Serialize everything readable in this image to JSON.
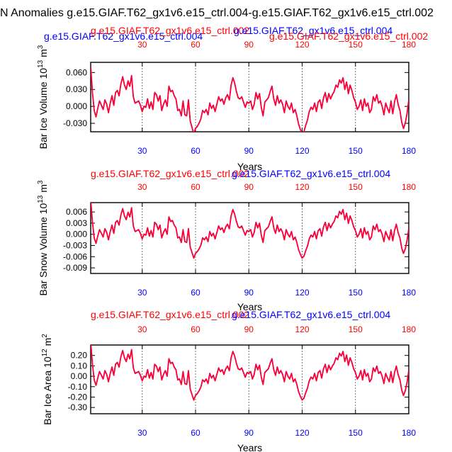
{
  "figure": {
    "title": "N Anomalies g.e15.GIAF.T62_gx1v6.e15_ctrl.004-g.e15.GIAF.T62_gx1v6.e15_ctrl.002",
    "xlabel": "Years"
  },
  "colors": {
    "case_a": "#0000ff",
    "case_b": "#ff0000",
    "line_blue": "#0000ff",
    "line_red": "#ff0033",
    "axis": "#000000",
    "guide": "#555555"
  },
  "chart_data": [
    {
      "type": "line",
      "ylabel": "Bar Ice Volume 10",
      "ylabel_exp": "13",
      "ylabel_unit": " m",
      "ylabel_unit_exp": "3",
      "legend_left": "g.e15.GIAF.T62_gx1v6.e15_ctrl.004",
      "legend_left_over": "g.e15.GIAF.T62_gx1v6.e15_ctrl.002",
      "legend_mid_over": "g.e15.GIAF.T62_gx1v6.e15_ctrl.004",
      "legend_right": "g.e15.GIAF.T62_gx1v6.e15_ctrl.002",
      "xlim": [
        1,
        180
      ],
      "ylim": [
        -0.045,
        0.078
      ],
      "yticks": [
        0.06,
        0.03,
        0.0,
        -0.03
      ],
      "ytick_labels": [
        "0.060",
        "0.030",
        "0.000",
        "-0.030"
      ],
      "xticks": [
        30,
        60,
        90,
        120,
        150,
        180
      ],
      "xtick_labels": [
        "30",
        "60",
        "90",
        "120",
        "150",
        "180"
      ],
      "guides": [
        30,
        60,
        90,
        120,
        150
      ],
      "scale": 0.0187,
      "series": [
        {
          "name": "g.e15.GIAF.T62_gx1v6.e15_ctrl.004",
          "color": "#0000ff"
        },
        {
          "name": "g.e15.GIAF.T62_gx1v6.e15_ctrl.002",
          "color": "#ff0033"
        }
      ]
    },
    {
      "type": "line",
      "ylabel": "Bar Snow Volume 10",
      "ylabel_exp": "13",
      "ylabel_unit": " m",
      "ylabel_unit_exp": "3",
      "legend_left": "g.e15.GIAF.T62_gx1v6.e15_ctrl.002",
      "legend_right": "g.e15.GIAF.T62_gx1v6.e15_ctrl.004",
      "xlim": [
        1,
        180
      ],
      "ylim": [
        -0.0105,
        0.0085
      ],
      "yticks": [
        0.006,
        0.003,
        0.0,
        -0.003,
        -0.006,
        -0.009
      ],
      "ytick_labels": [
        "0.006",
        "0.003",
        "0.000",
        "-0.003",
        "-0.006",
        "-0.009"
      ],
      "xticks": [
        30,
        60,
        90,
        120,
        150,
        180
      ],
      "xtick_labels": [
        "30",
        "60",
        "90",
        "120",
        "150",
        "180"
      ],
      "guides": [
        30,
        60,
        90,
        120,
        150
      ],
      "scale": 0.00245,
      "series": [
        {
          "name": "g.e15.GIAF.T62_gx1v6.e15_ctrl.004",
          "color": "#0000ff"
        },
        {
          "name": "g.e15.GIAF.T62_gx1v6.e15_ctrl.002",
          "color": "#ff0033"
        }
      ]
    },
    {
      "type": "line",
      "ylabel": "Bar Ice Area 10",
      "ylabel_exp": "12",
      "ylabel_unit": " m",
      "ylabel_unit_exp": "2",
      "legend_left": "g.e15.GIAF.T62_gx1v6.e15_ctrl.002",
      "legend_right": "g.e15.GIAF.T62_gx1v6.e15_ctrl.004",
      "xlim": [
        1,
        180
      ],
      "ylim": [
        -0.36,
        0.3
      ],
      "yticks": [
        0.2,
        0.1,
        0.0,
        -0.1,
        -0.2,
        -0.3
      ],
      "ytick_labels": [
        "0.20",
        "0.10",
        "0.00",
        "-0.10",
        "-0.20",
        "-0.30"
      ],
      "xticks": [
        30,
        60,
        90,
        120,
        150,
        180
      ],
      "xtick_labels": [
        "30",
        "60",
        "90",
        "120",
        "150",
        "180"
      ],
      "guides": [
        30,
        60,
        90,
        120,
        150
      ],
      "scale": 0.088,
      "series": [
        {
          "name": "g.e15.GIAF.T62_gx1v6.e15_ctrl.004",
          "color": "#0000ff"
        },
        {
          "name": "g.e15.GIAF.T62_gx1v6.e15_ctrl.002",
          "color": "#ff0033"
        }
      ]
    }
  ],
  "base_pattern": [
    [
      1,
      3.8
    ],
    [
      2,
      1.3
    ],
    [
      3,
      -0.4
    ],
    [
      4,
      -1.0
    ],
    [
      5,
      -0.2
    ],
    [
      6,
      0.5
    ],
    [
      7,
      0.1
    ],
    [
      8,
      -0.3
    ],
    [
      9,
      0.6
    ],
    [
      10,
      0.2
    ],
    [
      11,
      -0.6
    ],
    [
      12,
      0.3
    ],
    [
      13,
      1.0
    ],
    [
      14,
      0.1
    ],
    [
      15,
      1.3
    ],
    [
      16,
      1.5
    ],
    [
      17,
      1.0
    ],
    [
      18,
      2.1
    ],
    [
      19,
      2.8
    ],
    [
      20,
      2.0
    ],
    [
      21,
      1.6
    ],
    [
      22,
      2.4
    ],
    [
      23,
      1.9
    ],
    [
      24,
      2.9
    ],
    [
      25,
      0.9
    ],
    [
      26,
      0.3
    ],
    [
      27,
      0.4
    ],
    [
      28,
      0.5
    ],
    [
      29,
      0.1
    ],
    [
      30,
      -0.5
    ],
    [
      31,
      0.0
    ],
    [
      32,
      -0.1
    ],
    [
      33,
      0.7
    ],
    [
      34,
      -0.2
    ],
    [
      35,
      0.4
    ],
    [
      36,
      -0.3
    ],
    [
      37,
      1.3
    ],
    [
      38,
      1.1
    ],
    [
      39,
      0.5
    ],
    [
      40,
      1.0
    ],
    [
      41,
      -0.4
    ],
    [
      42,
      0.2
    ],
    [
      43,
      0.6
    ],
    [
      44,
      0.0
    ],
    [
      45,
      1.9
    ],
    [
      46,
      1.4
    ],
    [
      47,
      1.5
    ],
    [
      48,
      1.0
    ],
    [
      49,
      0.7
    ],
    [
      50,
      -0.4
    ],
    [
      51,
      -0.3
    ],
    [
      52,
      -0.9
    ],
    [
      53,
      0.5
    ],
    [
      54,
      -0.8
    ],
    [
      55,
      -0.9
    ],
    [
      56,
      0.6
    ],
    [
      57,
      -1.4
    ],
    [
      58,
      -2.0
    ],
    [
      59,
      -2.6
    ],
    [
      60,
      -2.1
    ],
    [
      61,
      -1.9
    ],
    [
      62,
      -1.6
    ],
    [
      63,
      -1.2
    ],
    [
      64,
      -0.4
    ],
    [
      65,
      -0.6
    ],
    [
      66,
      -0.3
    ],
    [
      67,
      -0.8
    ],
    [
      68,
      0.3
    ],
    [
      69,
      -0.2
    ],
    [
      70,
      0.1
    ],
    [
      71,
      -0.5
    ],
    [
      72,
      0.2
    ],
    [
      73,
      0.9
    ],
    [
      74,
      0.5
    ],
    [
      75,
      0.7
    ],
    [
      76,
      0.2
    ],
    [
      77,
      0.8
    ],
    [
      78,
      1.1
    ],
    [
      79,
      0.6
    ],
    [
      80,
      2.0
    ],
    [
      81,
      2.7
    ],
    [
      82,
      2.2
    ],
    [
      83,
      1.4
    ],
    [
      84,
      0.8
    ],
    [
      85,
      0.7
    ],
    [
      86,
      0.9
    ],
    [
      87,
      0.4
    ],
    [
      88,
      -0.1
    ],
    [
      89,
      0.4
    ],
    [
      90,
      0.3
    ],
    [
      91,
      0.5
    ],
    [
      92,
      -0.3
    ],
    [
      93,
      0.2
    ],
    [
      94,
      1.3
    ],
    [
      95,
      0.7
    ],
    [
      96,
      1.2
    ],
    [
      97,
      -0.1
    ],
    [
      98,
      -0.9
    ],
    [
      99,
      0.4
    ],
    [
      100,
      0.6
    ],
    [
      101,
      0.8
    ],
    [
      102,
      1.4
    ],
    [
      103,
      1.9
    ],
    [
      104,
      0.7
    ],
    [
      105,
      0.1
    ],
    [
      106,
      1.0
    ],
    [
      107,
      0.3
    ],
    [
      108,
      0.6
    ],
    [
      109,
      0.2
    ],
    [
      110,
      -0.6
    ],
    [
      111,
      0.5
    ],
    [
      112,
      0.0
    ],
    [
      113,
      -0.3
    ],
    [
      114,
      0.3
    ],
    [
      115,
      -0.6
    ],
    [
      116,
      -0.3
    ],
    [
      117,
      -0.9
    ],
    [
      118,
      -1.7
    ],
    [
      119,
      -2.2
    ],
    [
      120,
      -2.6
    ],
    [
      121,
      -2.4
    ],
    [
      122,
      -1.8
    ],
    [
      123,
      -1.3
    ],
    [
      124,
      -0.5
    ],
    [
      125,
      -0.1
    ],
    [
      126,
      -0.3
    ],
    [
      127,
      0.3
    ],
    [
      128,
      -0.5
    ],
    [
      129,
      0.4
    ],
    [
      130,
      0.6
    ],
    [
      131,
      -0.2
    ],
    [
      132,
      0.8
    ],
    [
      133,
      1.3
    ],
    [
      134,
      0.4
    ],
    [
      135,
      1.2
    ],
    [
      136,
      0.7
    ],
    [
      137,
      1.1
    ],
    [
      138,
      1.4
    ],
    [
      139,
      2.0
    ],
    [
      140,
      1.8
    ],
    [
      141,
      2.5
    ],
    [
      142,
      2.2
    ],
    [
      143,
      2.7
    ],
    [
      144,
      1.6
    ],
    [
      145,
      2.3
    ],
    [
      146,
      1.2
    ],
    [
      147,
      2.0
    ],
    [
      148,
      1.5
    ],
    [
      149,
      0.8
    ],
    [
      150,
      0.4
    ],
    [
      151,
      -0.3
    ],
    [
      152,
      0.0
    ],
    [
      153,
      0.6
    ],
    [
      154,
      -0.4
    ],
    [
      155,
      0.7
    ],
    [
      156,
      0.0
    ],
    [
      157,
      0.3
    ],
    [
      158,
      -0.6
    ],
    [
      159,
      -0.3
    ],
    [
      160,
      0.9
    ],
    [
      161,
      0.5
    ],
    [
      162,
      1.1
    ],
    [
      163,
      0.3
    ],
    [
      164,
      0.5
    ],
    [
      165,
      0.0
    ],
    [
      166,
      -0.8
    ],
    [
      167,
      0.3
    ],
    [
      168,
      -0.2
    ],
    [
      169,
      -0.6
    ],
    [
      170,
      0.5
    ],
    [
      171,
      -0.7
    ],
    [
      172,
      0.4
    ],
    [
      173,
      1.1
    ],
    [
      174,
      0.2
    ],
    [
      175,
      -0.4
    ],
    [
      176,
      -1.5
    ],
    [
      177,
      -2.1
    ],
    [
      178,
      -1.6
    ],
    [
      179,
      -0.7
    ],
    [
      180,
      0.6
    ]
  ]
}
